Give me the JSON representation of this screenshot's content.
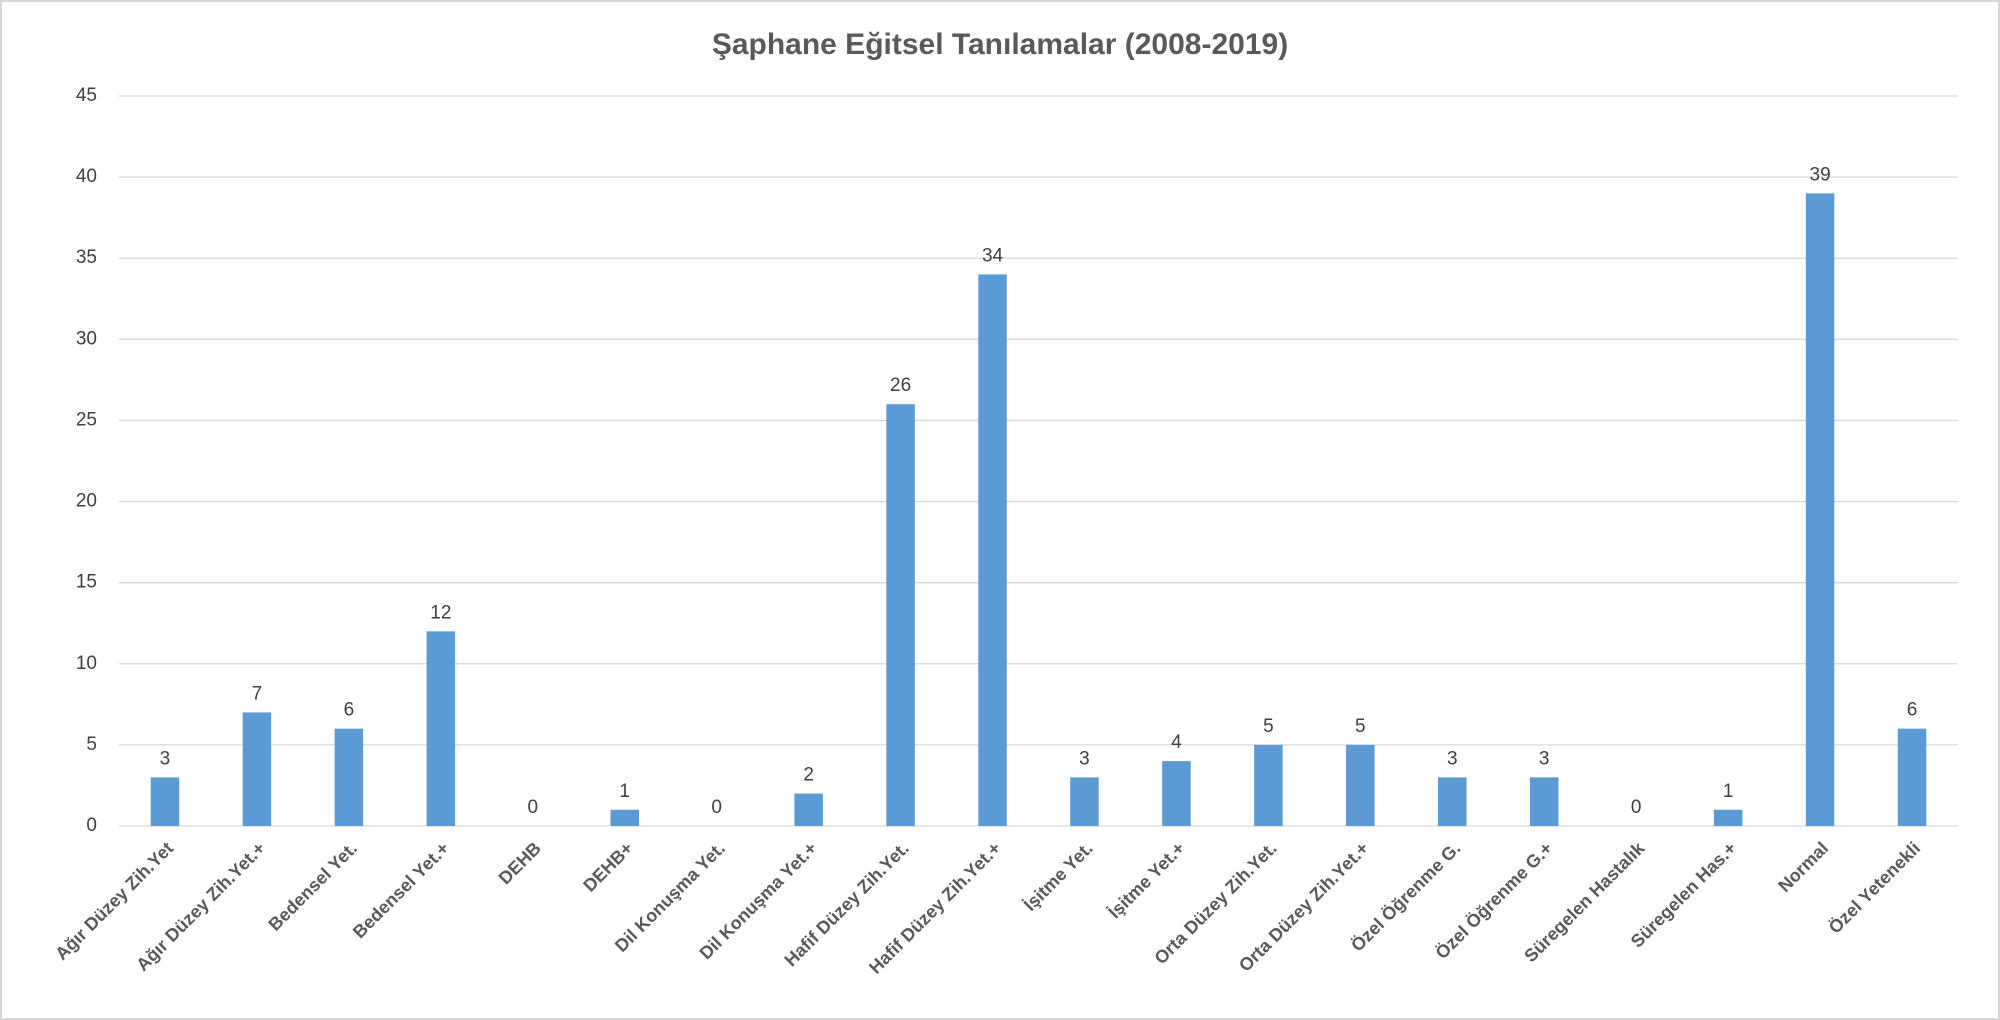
{
  "chart_data": {
    "type": "bar",
    "title": "Şaphane Eğitsel Tanılamalar (2008-2019)",
    "categories": [
      "Ağır Düzey Zih.Yet",
      "Ağır Düzey Zih.Yet.+",
      "Bedensel Yet.",
      "Bedensel Yet.+",
      "DEHB",
      "DEHB+",
      "Dil Konuşma Yet.",
      "Dil Konuşma Yet.+",
      "Hafif Düzey Zih.Yet.",
      "Hafif Düzey Zih.Yet.+",
      "İşitme Yet.",
      "İşitme Yet.+",
      "Orta Düzey Zih.Yet.",
      "Orta Düzey Zih.Yet.+",
      "Özel Öğrenme G.",
      "Özel Öğrenme G.+",
      "Süregelen Hastalık",
      "Süregelen Has.+",
      "Normal",
      "Özel Yetenekli"
    ],
    "values": [
      3,
      7,
      6,
      12,
      0,
      1,
      0,
      2,
      26,
      34,
      3,
      4,
      5,
      5,
      3,
      3,
      0,
      1,
      39,
      6
    ],
    "color": "#5b9bd5",
    "ylim": [
      0,
      45
    ],
    "yticks": [
      0,
      5,
      10,
      15,
      20,
      25,
      30,
      35,
      40,
      45
    ],
    "grid": true
  }
}
